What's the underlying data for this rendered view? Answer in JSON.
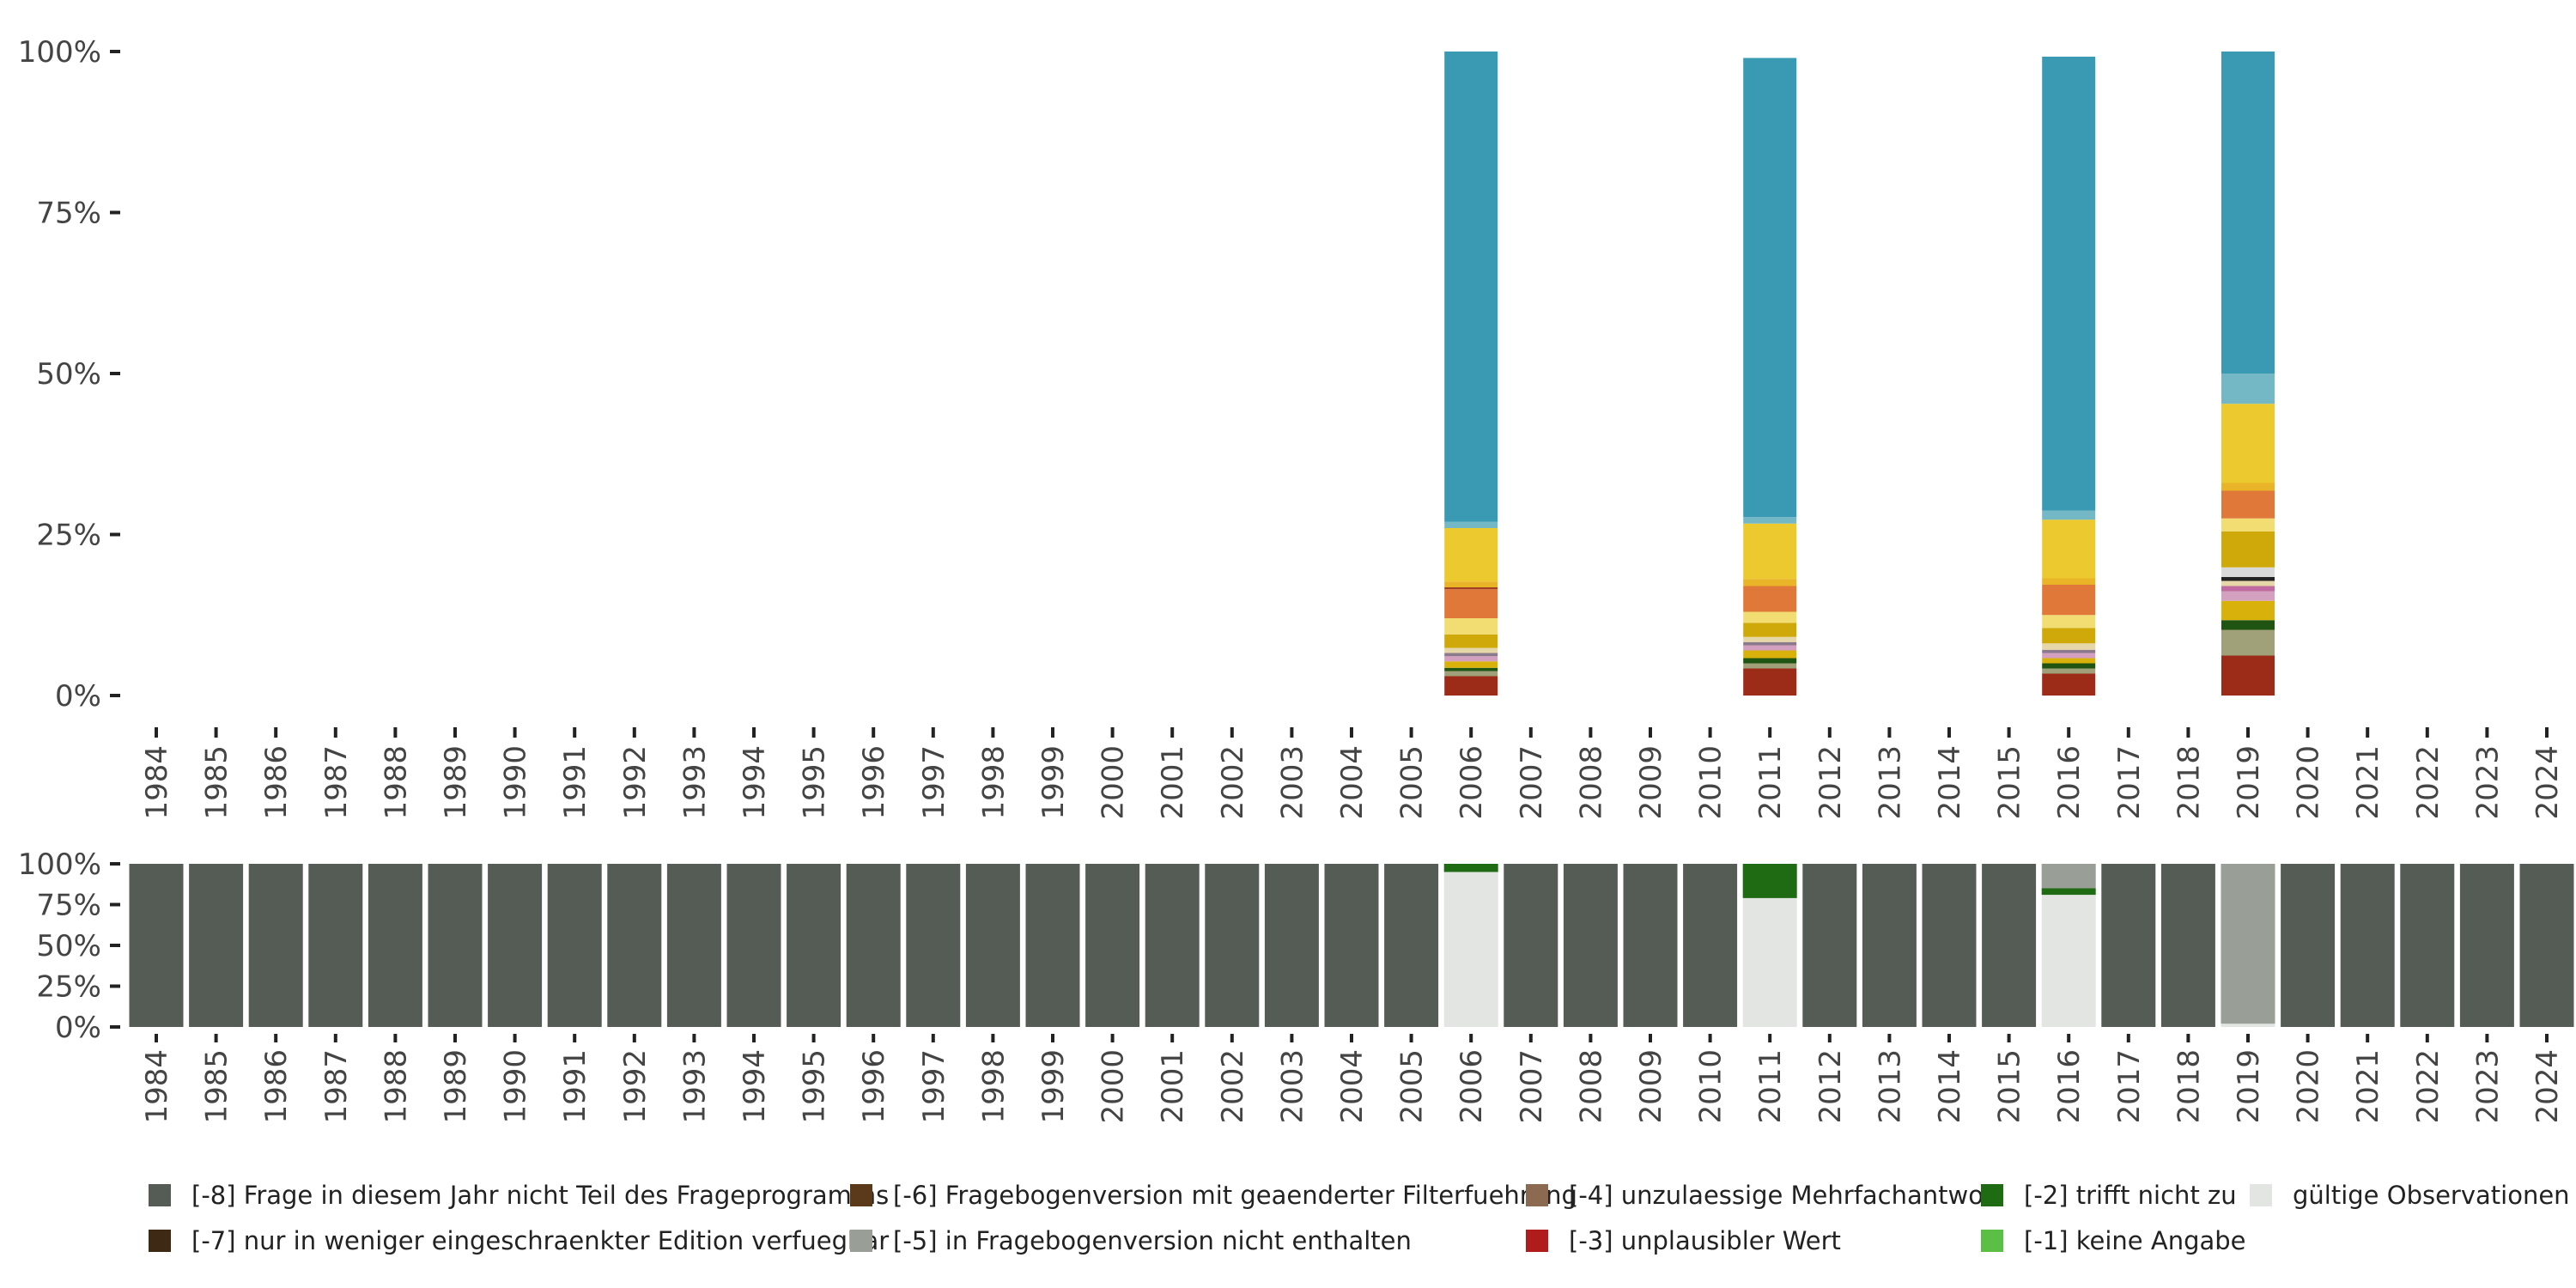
{
  "chart_data": [
    {
      "type": "bar",
      "stacked": true,
      "title": "",
      "xlabel": "",
      "ylabel": "",
      "ylim": [
        0,
        100
      ],
      "y_ticks": [
        "0%",
        "25%",
        "50%",
        "75%",
        "100%"
      ],
      "y_tick_values": [
        0,
        25,
        50,
        75,
        100
      ],
      "categories": [
        "1984",
        "1985",
        "1986",
        "1987",
        "1988",
        "1989",
        "1990",
        "1991",
        "1992",
        "1993",
        "1994",
        "1995",
        "1996",
        "1997",
        "1998",
        "1999",
        "2000",
        "2001",
        "2002",
        "2003",
        "2004",
        "2005",
        "2006",
        "2007",
        "2008",
        "2009",
        "2010",
        "2011",
        "2012",
        "2013",
        "2014",
        "2015",
        "2016",
        "2017",
        "2018",
        "2019",
        "2020",
        "2021",
        "2022",
        "2023",
        "2024"
      ],
      "bars": [
        {
          "year": "2006",
          "segments": [
            {
              "color": "#9c2b17",
              "value": 3
            },
            {
              "color": "#a0a178",
              "value": 0.8
            },
            {
              "color": "#1f5412",
              "value": 0.5
            },
            {
              "color": "#d8b10a",
              "value": 1
            },
            {
              "color": "#d4a0c0",
              "value": 0.8
            },
            {
              "color": "#8a7a8c",
              "value": 0.5
            },
            {
              "color": "#e6d7a8",
              "value": 0.8
            },
            {
              "color": "#cfa90a",
              "value": 2.1
            },
            {
              "color": "#f2dd73",
              "value": 2.5
            },
            {
              "color": "#e0783a",
              "value": 4.5
            },
            {
              "color": "#a04020",
              "value": 0.3
            },
            {
              "color": "#eab428",
              "value": 0.9
            },
            {
              "color": "#ecc92f",
              "value": 8.3
            },
            {
              "color": "#74b8c6",
              "value": 1.0
            },
            {
              "color": "#3a9ab4",
              "value": 73.0
            }
          ]
        },
        {
          "year": "2011",
          "segments": [
            {
              "color": "#9c2b17",
              "value": 4.2
            },
            {
              "color": "#a0a178",
              "value": 0.8
            },
            {
              "color": "#1f5412",
              "value": 0.8
            },
            {
              "color": "#d8b10a",
              "value": 1.2
            },
            {
              "color": "#d4a0c0",
              "value": 0.8
            },
            {
              "color": "#8a7a8c",
              "value": 0.5
            },
            {
              "color": "#e6d7a8",
              "value": 0.8
            },
            {
              "color": "#cfa90a",
              "value": 2.2
            },
            {
              "color": "#f2dd73",
              "value": 1.7
            },
            {
              "color": "#e0783a",
              "value": 4.0
            },
            {
              "color": "#eab428",
              "value": 1.1
            },
            {
              "color": "#ecc92f",
              "value": 8.6
            },
            {
              "color": "#74b8c6",
              "value": 1.0
            },
            {
              "color": "#3a9ab4",
              "value": 71.3
            }
          ]
        },
        {
          "year": "2016",
          "segments": [
            {
              "color": "#9c2b17",
              "value": 3.4
            },
            {
              "color": "#a0a178",
              "value": 0.8
            },
            {
              "color": "#1f5412",
              "value": 0.8
            },
            {
              "color": "#d8b10a",
              "value": 0.8
            },
            {
              "color": "#d4a0c0",
              "value": 0.8
            },
            {
              "color": "#8a7a8c",
              "value": 0.5
            },
            {
              "color": "#e6d7a8",
              "value": 1.0
            },
            {
              "color": "#cfa90a",
              "value": 2.4
            },
            {
              "color": "#f2dd73",
              "value": 2.0
            },
            {
              "color": "#e0783a",
              "value": 4.7
            },
            {
              "color": "#eab428",
              "value": 1.0
            },
            {
              "color": "#ecc92f",
              "value": 9.1
            },
            {
              "color": "#74b8c6",
              "value": 1.4
            },
            {
              "color": "#3a9ab4",
              "value": 70.5
            }
          ]
        },
        {
          "year": "2019",
          "segments": [
            {
              "color": "#9c2b17",
              "value": 6.2
            },
            {
              "color": "#a0a178",
              "value": 4.0
            },
            {
              "color": "#1f5412",
              "value": 1.5
            },
            {
              "color": "#d8b10a",
              "value": 3.0
            },
            {
              "color": "#d4a0c0",
              "value": 1.5
            },
            {
              "color": "#c06aa0",
              "value": 0.8
            },
            {
              "color": "#e6d7a8",
              "value": 0.8
            },
            {
              "color": "#222222",
              "value": 0.6
            },
            {
              "color": "#d9d9d9",
              "value": 1.5
            },
            {
              "color": "#cfa90a",
              "value": 5.6
            },
            {
              "color": "#f2dd73",
              "value": 2.0
            },
            {
              "color": "#e0783a",
              "value": 4.3
            },
            {
              "color": "#eab428",
              "value": 1.2
            },
            {
              "color": "#ecc92f",
              "value": 12.3
            },
            {
              "color": "#74b8c6",
              "value": 4.7
            },
            {
              "color": "#3a9ab4",
              "value": 50.0
            }
          ]
        }
      ]
    },
    {
      "type": "bar",
      "stacked": true,
      "title": "",
      "xlabel": "",
      "ylabel": "",
      "ylim": [
        0,
        100
      ],
      "y_ticks": [
        "0%",
        "25%",
        "50%",
        "75%",
        "100%"
      ],
      "y_tick_values": [
        0,
        25,
        50,
        75,
        100
      ],
      "categories": [
        "1984",
        "1985",
        "1986",
        "1987",
        "1988",
        "1989",
        "1990",
        "1991",
        "1992",
        "1993",
        "1994",
        "1995",
        "1996",
        "1997",
        "1998",
        "1999",
        "2000",
        "2001",
        "2002",
        "2003",
        "2004",
        "2005",
        "2006",
        "2007",
        "2008",
        "2009",
        "2010",
        "2011",
        "2012",
        "2013",
        "2014",
        "2015",
        "2016",
        "2017",
        "2018",
        "2019",
        "2020",
        "2021",
        "2022",
        "2023",
        "2024"
      ],
      "default_segments": [
        {
          "series": "[-8] Frage in diesem Jahr nicht Teil des Frageprogramms",
          "value": 100
        }
      ],
      "overrides": {
        "2006": [
          {
            "series": "gültige Observationen",
            "value": 95
          },
          {
            "series": "[-2] trifft nicht zu",
            "value": 5
          }
        ],
        "2011": [
          {
            "series": "gültige Observationen",
            "value": 79
          },
          {
            "series": "[-2] trifft nicht zu",
            "value": 21
          }
        ],
        "2016": [
          {
            "series": "gültige Observationen",
            "value": 81
          },
          {
            "series": "[-2] trifft nicht zu",
            "value": 4
          },
          {
            "series": "[-5] in Fragebogenversion nicht enthalten",
            "value": 15
          }
        ],
        "2019": [
          {
            "series": "gültige Observationen",
            "value": 2
          },
          {
            "series": "[-5] in Fragebogenversion nicht enthalten",
            "value": 98
          }
        ]
      }
    }
  ],
  "legend": {
    "placement": "bottom",
    "items": [
      {
        "label": "[-8] Frage in diesem Jahr nicht Teil des Frageprogramms",
        "color": "#555b55"
      },
      {
        "label": "[-6] Fragebogenversion mit geaenderter Filterfuehrung",
        "color": "#5a3a1a"
      },
      {
        "label": "[-4] unzulaessige Mehrfachantwort",
        "color": "#8c6a52"
      },
      {
        "label": "[-2] trifft nicht zu",
        "color": "#1f6b14"
      },
      {
        "label": "gültige Observationen",
        "color": "#e2e5e1"
      },
      {
        "label": "[-7] nur in weniger eingeschraenkter Edition verfuegbar",
        "color": "#3e2a14"
      },
      {
        "label": "[-5] in Fragebogenversion nicht enthalten",
        "color": "#999e96"
      },
      {
        "label": "[-3] unplausibler Wert",
        "color": "#b01c1c"
      },
      {
        "label": "[-1] keine Angabe",
        "color": "#5bbf45"
      }
    ]
  }
}
